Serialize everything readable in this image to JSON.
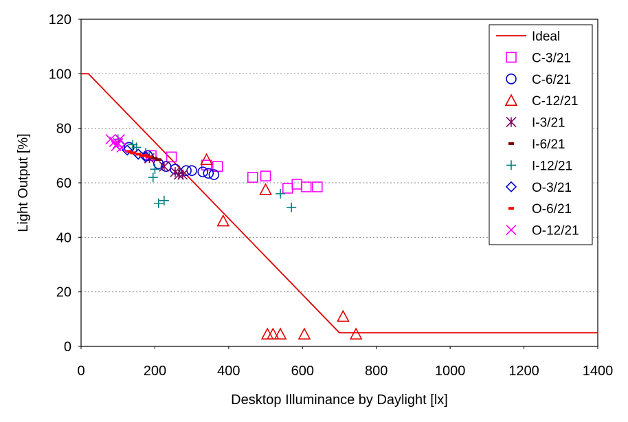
{
  "chart_data": {
    "type": "scatter",
    "xlabel": "Desktop Illuminance by Daylight [lx]",
    "ylabel": "Light  Output [%]",
    "xlim": [
      0,
      1400
    ],
    "ylim": [
      0,
      120
    ],
    "xticks": [
      "0",
      "200",
      "400",
      "600",
      "800",
      "1000",
      "1200",
      "1400"
    ],
    "yticks": [
      "0",
      "20",
      "40",
      "60",
      "80",
      "100",
      "120"
    ],
    "grid": "horizontal dashed",
    "legend_position": "top-right",
    "series": [
      {
        "name": "Ideal",
        "kind": "line",
        "color": "#e00000",
        "points": [
          [
            0,
            100
          ],
          [
            20,
            100
          ],
          [
            700,
            5
          ],
          [
            1400,
            5
          ]
        ]
      },
      {
        "name": "C-3/21",
        "marker": "square",
        "color": "#ff00ff",
        "points": [
          [
            190,
            70
          ],
          [
            245,
            69.5
          ],
          [
            340,
            66.5
          ],
          [
            370,
            66
          ],
          [
            465,
            62
          ],
          [
            500,
            62.5
          ],
          [
            560,
            58
          ],
          [
            585,
            59.5
          ],
          [
            610,
            58.5
          ],
          [
            640,
            58.5
          ]
        ]
      },
      {
        "name": "C-6/21",
        "marker": "circle",
        "color": "#0000cc",
        "points": [
          [
            130,
            73
          ],
          [
            180,
            70
          ],
          [
            210,
            67
          ],
          [
            230,
            66
          ],
          [
            255,
            65
          ],
          [
            285,
            64.5
          ],
          [
            300,
            64.5
          ],
          [
            330,
            64
          ],
          [
            345,
            63.5
          ],
          [
            360,
            63
          ]
        ]
      },
      {
        "name": "C-12/21",
        "marker": "triangle",
        "color": "#e00000",
        "points": [
          [
            340,
            68.5
          ],
          [
            500,
            57.5
          ],
          [
            385,
            46
          ],
          [
            710,
            11
          ],
          [
            505,
            4.5
          ],
          [
            520,
            4.5
          ],
          [
            540,
            4.5
          ],
          [
            605,
            4.5
          ],
          [
            745,
            4.5
          ]
        ]
      },
      {
        "name": "I-3/21",
        "marker": "asterisk",
        "color": "#800060",
        "points": [
          [
            185,
            69
          ],
          [
            225,
            66
          ],
          [
            255,
            64
          ],
          [
            265,
            63
          ],
          [
            275,
            63
          ]
        ]
      },
      {
        "name": "I-6/21",
        "marker": "dash",
        "color": "#800000",
        "points": [
          [
            190,
            69.5
          ],
          [
            200,
            69
          ],
          [
            210,
            68.5
          ]
        ]
      },
      {
        "name": "I-12/21",
        "marker": "plus",
        "color": "#008080",
        "points": [
          [
            100,
            76
          ],
          [
            140,
            74
          ],
          [
            150,
            73
          ],
          [
            175,
            71
          ],
          [
            195,
            62
          ],
          [
            200,
            65
          ],
          [
            210,
            52.5
          ],
          [
            225,
            53.5
          ],
          [
            540,
            56
          ],
          [
            570,
            51
          ]
        ]
      },
      {
        "name": "O-3/21",
        "marker": "diamond",
        "color": "#0000cc",
        "points": [
          [
            105,
            74
          ],
          [
            125,
            72
          ],
          [
            155,
            70.5
          ],
          [
            175,
            69.5
          ]
        ]
      },
      {
        "name": "O-6/21",
        "marker": "dash",
        "color": "#ff0000",
        "points": [
          [
            130,
            71.5
          ],
          [
            140,
            71
          ],
          [
            155,
            70.5
          ],
          [
            165,
            70
          ],
          [
            175,
            70
          ],
          [
            185,
            69.5
          ]
        ]
      },
      {
        "name": "O-12/21",
        "marker": "x",
        "color": "#ff00ff",
        "points": [
          [
            80,
            76
          ],
          [
            90,
            75
          ],
          [
            100,
            74.5
          ],
          [
            105,
            76
          ],
          [
            95,
            73.5
          ],
          [
            110,
            73
          ]
        ]
      }
    ]
  }
}
